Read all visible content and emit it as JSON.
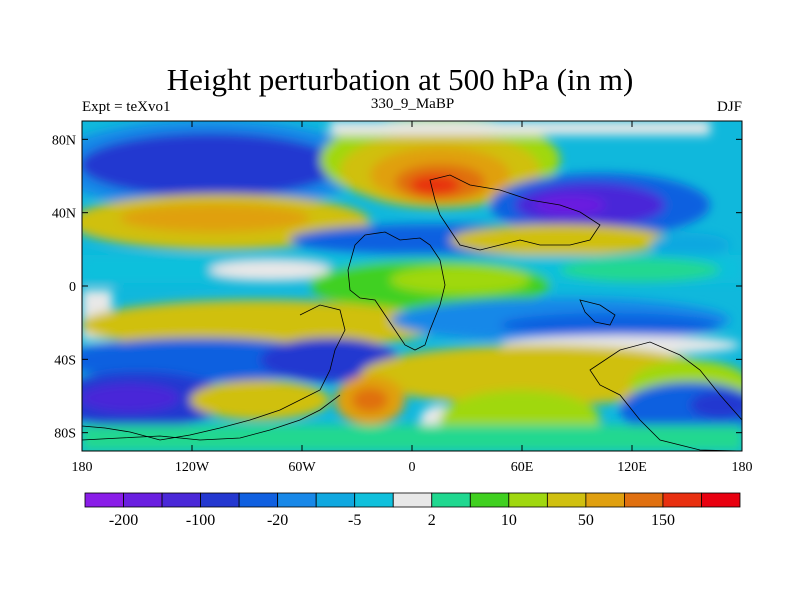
{
  "title": "Height perturbation at 500 hPa (in m)",
  "left_string": "Expt = teXvo1",
  "center_string": "330_9_MaBP",
  "right_string": "DJF",
  "lat_ticks": [
    {
      "value": 80,
      "label": "80N"
    },
    {
      "value": 40,
      "label": "40N"
    },
    {
      "value": 0,
      "label": "0"
    },
    {
      "value": -40,
      "label": "40S"
    },
    {
      "value": -80,
      "label": "80S"
    }
  ],
  "lon_ticks": [
    {
      "value": -180,
      "label": "180"
    },
    {
      "value": -120,
      "label": "120W"
    },
    {
      "value": -60,
      "label": "60W"
    },
    {
      "value": 0,
      "label": "0"
    },
    {
      "value": 60,
      "label": "60E"
    },
    {
      "value": 120,
      "label": "120E"
    },
    {
      "value": 180,
      "label": "180"
    }
  ],
  "colorbar": {
    "colors": [
      "#8a1de8",
      "#6a1fe0",
      "#4a28d8",
      "#2438d0",
      "#1060e0",
      "#1888e8",
      "#10a8e0",
      "#10c0dc",
      "#e8e8e8",
      "#20d890",
      "#40d020",
      "#a0d810",
      "#d0c010",
      "#e0a010",
      "#e07010",
      "#e83010",
      "#e80010"
    ],
    "labels": [
      {
        "index": 1,
        "text": "-200"
      },
      {
        "index": 3,
        "text": "-100"
      },
      {
        "index": 5,
        "text": "-20"
      },
      {
        "index": 7,
        "text": "-5"
      },
      {
        "index": 9,
        "text": "2"
      },
      {
        "index": 11,
        "text": "10"
      },
      {
        "index": 13,
        "text": "50"
      },
      {
        "index": 15,
        "text": "150"
      }
    ]
  }
}
